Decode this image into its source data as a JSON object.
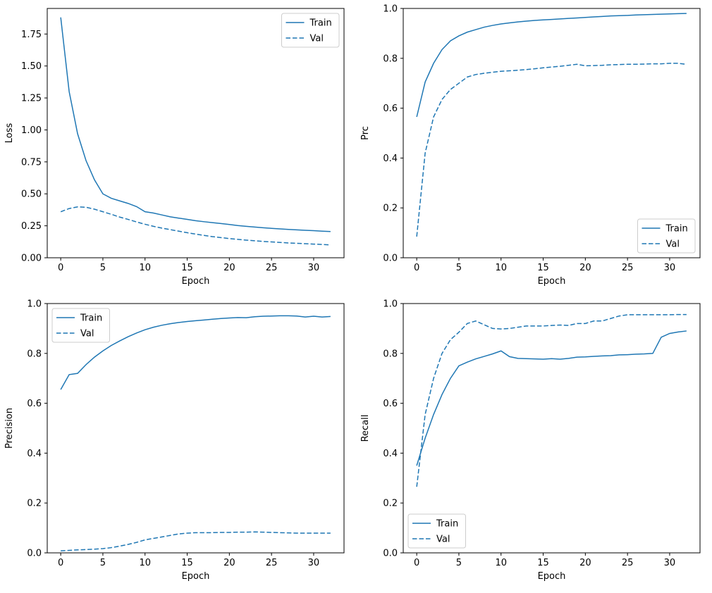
{
  "figure": {
    "background": "#ffffff",
    "line_color": "#1f77b4",
    "legend_labels": [
      "Train",
      "Val"
    ]
  },
  "chart_data": [
    {
      "id": "loss",
      "type": "line",
      "title": "",
      "xlabel": "Epoch",
      "ylabel": "Loss",
      "legend_position": "upper right",
      "grid": false,
      "xlim": [
        -1.6,
        33.6
      ],
      "ylim": [
        0,
        1.95
      ],
      "xticks": [
        0,
        5,
        10,
        15,
        20,
        25,
        30
      ],
      "yticks": [
        0,
        0.25,
        0.5,
        0.75,
        1.0,
        1.25,
        1.5,
        1.75
      ],
      "ytick_labels": [
        "0.00",
        "0.25",
        "0.50",
        "0.75",
        "1.00",
        "1.25",
        "1.50",
        "1.75"
      ],
      "x": [
        0,
        1,
        2,
        3,
        4,
        5,
        6,
        7,
        8,
        9,
        10,
        11,
        12,
        13,
        14,
        15,
        16,
        17,
        18,
        19,
        20,
        21,
        22,
        23,
        24,
        25,
        26,
        27,
        28,
        29,
        30,
        31,
        32
      ],
      "series": [
        {
          "name": "Train",
          "style": "solid",
          "values": [
            1.88,
            1.3,
            0.97,
            0.76,
            0.61,
            0.5,
            0.465,
            0.445,
            0.425,
            0.4,
            0.36,
            0.35,
            0.335,
            0.32,
            0.31,
            0.3,
            0.29,
            0.282,
            0.275,
            0.268,
            0.26,
            0.252,
            0.246,
            0.24,
            0.235,
            0.23,
            0.226,
            0.222,
            0.218,
            0.215,
            0.212,
            0.208,
            0.205
          ]
        },
        {
          "name": "Val",
          "style": "dashed",
          "values": [
            0.36,
            0.385,
            0.398,
            0.395,
            0.38,
            0.36,
            0.34,
            0.318,
            0.3,
            0.28,
            0.262,
            0.246,
            0.232,
            0.22,
            0.208,
            0.196,
            0.185,
            0.175,
            0.165,
            0.158,
            0.15,
            0.144,
            0.138,
            0.133,
            0.128,
            0.124,
            0.12,
            0.116,
            0.113,
            0.11,
            0.107,
            0.104,
            0.1
          ]
        }
      ]
    },
    {
      "id": "prc",
      "type": "line",
      "title": "",
      "xlabel": "Epoch",
      "ylabel": "Prc",
      "legend_position": "lower right",
      "grid": false,
      "xlim": [
        -1.6,
        33.6
      ],
      "ylim": [
        0,
        1.0
      ],
      "xticks": [
        0,
        5,
        10,
        15,
        20,
        25,
        30
      ],
      "yticks": [
        0,
        0.2,
        0.4,
        0.6,
        0.8,
        1.0
      ],
      "ytick_labels": [
        "0.0",
        "0.2",
        "0.4",
        "0.6",
        "0.8",
        "1.0"
      ],
      "x": [
        0,
        1,
        2,
        3,
        4,
        5,
        6,
        7,
        8,
        9,
        10,
        11,
        12,
        13,
        14,
        15,
        16,
        17,
        18,
        19,
        20,
        21,
        22,
        23,
        24,
        25,
        26,
        27,
        28,
        29,
        30,
        31,
        32
      ],
      "series": [
        {
          "name": "Train",
          "style": "solid",
          "values": [
            0.565,
            0.705,
            0.78,
            0.835,
            0.87,
            0.89,
            0.905,
            0.915,
            0.925,
            0.932,
            0.938,
            0.942,
            0.946,
            0.949,
            0.952,
            0.954,
            0.956,
            0.958,
            0.96,
            0.962,
            0.964,
            0.966,
            0.968,
            0.97,
            0.971,
            0.972,
            0.974,
            0.975,
            0.976,
            0.977,
            0.978,
            0.979,
            0.98
          ]
        },
        {
          "name": "Val",
          "style": "dashed",
          "values": [
            0.085,
            0.42,
            0.565,
            0.635,
            0.675,
            0.7,
            0.725,
            0.735,
            0.74,
            0.744,
            0.748,
            0.75,
            0.752,
            0.755,
            0.758,
            0.762,
            0.765,
            0.768,
            0.772,
            0.776,
            0.77,
            0.771,
            0.772,
            0.774,
            0.775,
            0.776,
            0.776,
            0.777,
            0.778,
            0.778,
            0.78,
            0.78,
            0.776
          ]
        }
      ]
    },
    {
      "id": "precision",
      "type": "line",
      "title": "",
      "xlabel": "Epoch",
      "ylabel": "Precision",
      "legend_position": "upper left",
      "grid": false,
      "xlim": [
        -1.6,
        33.6
      ],
      "ylim": [
        0,
        1.0
      ],
      "xticks": [
        0,
        5,
        10,
        15,
        20,
        25,
        30
      ],
      "yticks": [
        0,
        0.2,
        0.4,
        0.6,
        0.8,
        1.0
      ],
      "ytick_labels": [
        "0.0",
        "0.2",
        "0.4",
        "0.6",
        "0.8",
        "1.0"
      ],
      "x": [
        0,
        1,
        2,
        3,
        4,
        5,
        6,
        7,
        8,
        9,
        10,
        11,
        12,
        13,
        14,
        15,
        16,
        17,
        18,
        19,
        20,
        21,
        22,
        23,
        24,
        25,
        26,
        27,
        28,
        29,
        30,
        31,
        32
      ],
      "series": [
        {
          "name": "Train",
          "style": "solid",
          "values": [
            0.655,
            0.715,
            0.72,
            0.755,
            0.785,
            0.81,
            0.832,
            0.85,
            0.867,
            0.882,
            0.895,
            0.905,
            0.913,
            0.919,
            0.924,
            0.928,
            0.931,
            0.934,
            0.937,
            0.94,
            0.942,
            0.944,
            0.943,
            0.947,
            0.949,
            0.95,
            0.951,
            0.951,
            0.95,
            0.946,
            0.949,
            0.946,
            0.948
          ]
        },
        {
          "name": "Val",
          "style": "dashed",
          "values": [
            0.008,
            0.01,
            0.012,
            0.013,
            0.015,
            0.017,
            0.021,
            0.027,
            0.034,
            0.042,
            0.052,
            0.058,
            0.064,
            0.07,
            0.076,
            0.079,
            0.081,
            0.081,
            0.081,
            0.082,
            0.082,
            0.083,
            0.083,
            0.084,
            0.083,
            0.082,
            0.081,
            0.08,
            0.079,
            0.079,
            0.079,
            0.079,
            0.079
          ]
        }
      ]
    },
    {
      "id": "recall",
      "type": "line",
      "title": "",
      "xlabel": "Epoch",
      "ylabel": "Recall",
      "legend_position": "lower left",
      "grid": false,
      "xlim": [
        -1.6,
        33.6
      ],
      "ylim": [
        0,
        1.0
      ],
      "xticks": [
        0,
        5,
        10,
        15,
        20,
        25,
        30
      ],
      "yticks": [
        0,
        0.2,
        0.4,
        0.6,
        0.8,
        1.0
      ],
      "ytick_labels": [
        "0.0",
        "0.2",
        "0.4",
        "0.6",
        "0.8",
        "1.0"
      ],
      "x": [
        0,
        1,
        2,
        3,
        4,
        5,
        6,
        7,
        8,
        9,
        10,
        11,
        12,
        13,
        14,
        15,
        16,
        17,
        18,
        19,
        20,
        21,
        22,
        23,
        24,
        25,
        26,
        27,
        28,
        29,
        30,
        31,
        32
      ],
      "series": [
        {
          "name": "Train",
          "style": "solid",
          "values": [
            0.35,
            0.46,
            0.555,
            0.635,
            0.7,
            0.75,
            0.765,
            0.778,
            0.788,
            0.798,
            0.81,
            0.787,
            0.78,
            0.779,
            0.778,
            0.777,
            0.779,
            0.777,
            0.78,
            0.785,
            0.786,
            0.788,
            0.79,
            0.791,
            0.794,
            0.795,
            0.797,
            0.798,
            0.8,
            0.865,
            0.88,
            0.886,
            0.89
          ]
        },
        {
          "name": "Val",
          "style": "dashed",
          "values": [
            0.265,
            0.555,
            0.7,
            0.8,
            0.855,
            0.885,
            0.92,
            0.93,
            0.915,
            0.9,
            0.898,
            0.9,
            0.905,
            0.91,
            0.91,
            0.91,
            0.912,
            0.914,
            0.912,
            0.92,
            0.92,
            0.93,
            0.93,
            0.94,
            0.95,
            0.955,
            0.955,
            0.955,
            0.955,
            0.955,
            0.955,
            0.956,
            0.956
          ]
        }
      ]
    }
  ]
}
